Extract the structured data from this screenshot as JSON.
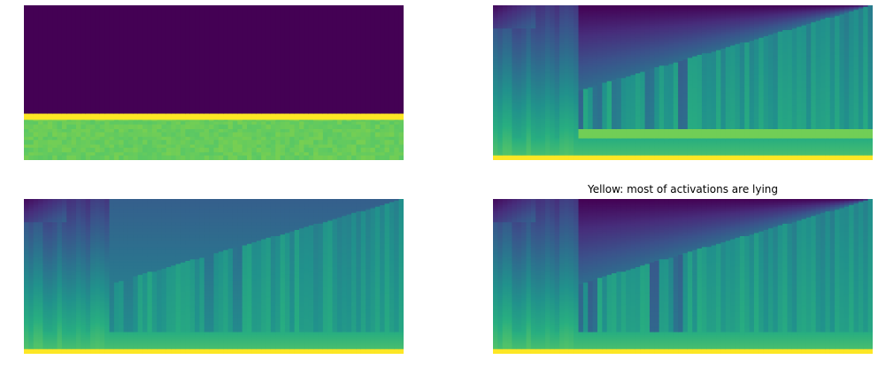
{
  "figure": {
    "type": "image-grid",
    "colormap": "viridis",
    "colormap_stops": [
      "#440154",
      "#472d7b",
      "#3b528b",
      "#2c728e",
      "#21918c",
      "#28ae80",
      "#5ec962",
      "#addc30",
      "#fde725"
    ],
    "axes_visible": false
  },
  "chart_data": [
    {
      "type": "heatmap",
      "name": "panel-1",
      "title": "",
      "colormap": "viridis",
      "axes_visible": false,
      "columns": 80,
      "rows": 100,
      "description_of_pattern": {
        "zero_region_rows_fraction": 0.71,
        "band_value": 1.0,
        "lower_region_value": 0.76
      }
    },
    {
      "type": "heatmap",
      "name": "panel-2",
      "title": "",
      "colormap": "viridis",
      "axes_visible": false,
      "columns": 80,
      "rows": 100
    },
    {
      "type": "heatmap",
      "name": "panel-3",
      "title": "",
      "colormap": "viridis",
      "axes_visible": false,
      "columns": 80,
      "rows": 100
    },
    {
      "type": "heatmap",
      "name": "panel-4",
      "title": "Yellow: most of activations are lying",
      "colormap": "viridis",
      "axes_visible": false,
      "columns": 80,
      "rows": 100
    }
  ],
  "panels": [
    {
      "title": ""
    },
    {
      "title": ""
    },
    {
      "title": ""
    },
    {
      "title": "Yellow: most of activations are lying"
    }
  ]
}
